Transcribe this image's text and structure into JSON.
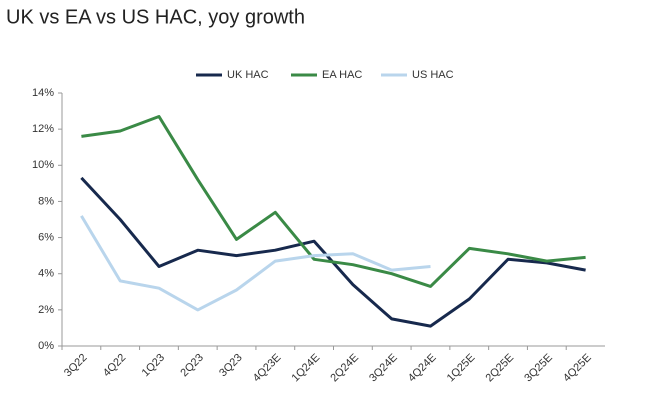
{
  "chart_data": {
    "type": "line",
    "title": "UK vs EA vs US HAC, yoy growth",
    "categories": [
      "3Q22",
      "4Q22",
      "1Q23",
      "2Q23",
      "3Q23",
      "4Q23E",
      "1Q24E",
      "2Q24E",
      "3Q24E",
      "4Q24E",
      "1Q25E",
      "2Q25E",
      "3Q25E",
      "4Q25E"
    ],
    "series": [
      {
        "name": "UK HAC",
        "color": "#17294d",
        "values": [
          9.3,
          7.0,
          4.4,
          5.3,
          5.0,
          5.3,
          5.8,
          3.4,
          1.5,
          1.1,
          2.6,
          4.8,
          4.6,
          4.2
        ]
      },
      {
        "name": "EA HAC",
        "color": "#3a8a46",
        "values": [
          11.6,
          11.9,
          12.7,
          9.2,
          5.9,
          7.4,
          4.8,
          4.5,
          4.0,
          3.3,
          5.4,
          5.1,
          4.7,
          4.9
        ]
      },
      {
        "name": "US HAC",
        "color": "#b9d5ec",
        "values": [
          7.2,
          3.6,
          3.2,
          2.0,
          3.1,
          4.7,
          5.0,
          5.1,
          4.2,
          4.4,
          null,
          null,
          null,
          null
        ]
      }
    ],
    "ylim": [
      0,
      14
    ],
    "yticks": [
      {
        "value": 0,
        "label": "0%"
      },
      {
        "value": 2,
        "label": "2%"
      },
      {
        "value": 4,
        "label": "4%"
      },
      {
        "value": 6,
        "label": "6%"
      },
      {
        "value": 8,
        "label": "8%"
      },
      {
        "value": 10,
        "label": "10%"
      },
      {
        "value": 12,
        "label": "12%"
      },
      {
        "value": 14,
        "label": "14%"
      }
    ],
    "grid": false,
    "legend": "top"
  }
}
